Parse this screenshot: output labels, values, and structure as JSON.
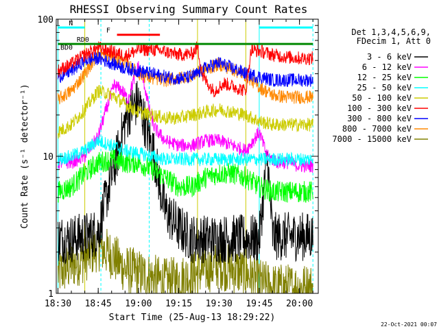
{
  "chart_data": {
    "type": "line",
    "title": "RHESSI Observing Summary Count Rates",
    "xlabel": "Start Time (25-Aug-13 18:29:22)",
    "ylabel": "Count Rate (s⁻¹ detector⁻¹)",
    "yscale": "log",
    "xlim": [
      "18:29:22",
      "20:07:00"
    ],
    "ylim": [
      1,
      100
    ],
    "x_ticks": [
      "18:30",
      "18:45",
      "19:00",
      "19:15",
      "19:30",
      "19:45",
      "20:00"
    ],
    "y_ticks": [
      "1",
      "10",
      "100"
    ],
    "legend_position": "right",
    "legend_header": [
      "Det 1,3,4,5,6,9,",
      "FDecim 1, Att 0"
    ],
    "series": [
      {
        "name": "3 - 6 keV",
        "color": "#000000",
        "points": [
          [
            "18:30",
            2.5
          ],
          [
            "18:35",
            2.5
          ],
          [
            "18:40",
            2.6
          ],
          [
            "18:45",
            2.8
          ],
          [
            "18:48",
            5
          ],
          [
            "18:52",
            10
          ],
          [
            "18:55",
            18
          ],
          [
            "18:57",
            22
          ],
          [
            "19:00",
            25
          ],
          [
            "19:03",
            16
          ],
          [
            "19:06",
            10
          ],
          [
            "19:08",
            6
          ],
          [
            "19:10",
            4
          ],
          [
            "19:15",
            3
          ],
          [
            "19:20",
            2.5
          ],
          [
            "19:22",
            2.5
          ],
          [
            "19:45",
            2.5
          ],
          [
            "19:48",
            10
          ],
          [
            "19:50",
            2.6
          ],
          [
            "19:55",
            2.6
          ],
          [
            "20:00",
            2.6
          ],
          [
            "20:05",
            2.6
          ]
        ]
      },
      {
        "name": "6 - 12 keV",
        "color": "#ff00ff",
        "points": [
          [
            "18:30",
            9
          ],
          [
            "18:35",
            9
          ],
          [
            "18:40",
            10
          ],
          [
            "18:45",
            14
          ],
          [
            "18:48",
            22
          ],
          [
            "18:51",
            33
          ],
          [
            "18:54",
            30
          ],
          [
            "18:56",
            26
          ],
          [
            "18:58",
            35
          ],
          [
            "19:00",
            46
          ],
          [
            "19:02",
            35
          ],
          [
            "19:04",
            22
          ],
          [
            "19:06",
            16
          ],
          [
            "19:10",
            13
          ],
          [
            "19:15",
            12
          ],
          [
            "19:20",
            12
          ],
          [
            "19:25",
            13
          ],
          [
            "19:30",
            13
          ],
          [
            "19:35",
            12
          ],
          [
            "19:40",
            11
          ],
          [
            "19:45",
            15
          ],
          [
            "19:48",
            10
          ],
          [
            "19:52",
            9
          ],
          [
            "19:56",
            9
          ],
          [
            "20:00",
            8.5
          ],
          [
            "20:05",
            8.5
          ]
        ]
      },
      {
        "name": "12 - 25 keV",
        "color": "#00ff00",
        "points": [
          [
            "18:30",
            5.5
          ],
          [
            "18:35",
            6
          ],
          [
            "18:40",
            7.5
          ],
          [
            "18:45",
            9
          ],
          [
            "18:50",
            9.5
          ],
          [
            "18:55",
            9
          ],
          [
            "19:00",
            9
          ],
          [
            "19:05",
            8
          ],
          [
            "19:10",
            7
          ],
          [
            "19:15",
            6
          ],
          [
            "19:20",
            6
          ],
          [
            "19:25",
            7
          ],
          [
            "19:30",
            7.5
          ],
          [
            "19:35",
            7.5
          ],
          [
            "19:40",
            7
          ],
          [
            "19:45",
            6
          ],
          [
            "19:50",
            5.5
          ],
          [
            "19:55",
            5.5
          ],
          [
            "20:00",
            5.5
          ],
          [
            "20:05",
            5.5
          ]
        ]
      },
      {
        "name": "25 - 50 keV",
        "color": "#00ffff",
        "points": [
          [
            "18:30",
            9.5
          ],
          [
            "18:35",
            10
          ],
          [
            "18:40",
            11
          ],
          [
            "18:45",
            13
          ],
          [
            "18:50",
            12
          ],
          [
            "18:55",
            11
          ],
          [
            "19:00",
            10.5
          ],
          [
            "19:05",
            10
          ],
          [
            "19:10",
            9.5
          ],
          [
            "19:15",
            9.5
          ],
          [
            "19:20",
            9.5
          ],
          [
            "19:25",
            9.5
          ],
          [
            "19:30",
            9.5
          ],
          [
            "19:35",
            9.5
          ],
          [
            "19:40",
            9.5
          ],
          [
            "19:45",
            9.5
          ],
          [
            "19:50",
            9.5
          ],
          [
            "19:55",
            9.5
          ],
          [
            "20:00",
            9.5
          ],
          [
            "20:05",
            9.5
          ]
        ]
      },
      {
        "name": "50 - 100 keV",
        "color": "#cccc00",
        "points": [
          [
            "18:30",
            15
          ],
          [
            "18:35",
            17
          ],
          [
            "18:40",
            22
          ],
          [
            "18:45",
            30
          ],
          [
            "18:50",
            28
          ],
          [
            "18:55",
            24
          ],
          [
            "19:00",
            21
          ],
          [
            "19:05",
            20
          ],
          [
            "19:10",
            19
          ],
          [
            "19:15",
            19
          ],
          [
            "19:20",
            20
          ],
          [
            "19:25",
            21
          ],
          [
            "19:30",
            22
          ],
          [
            "19:35",
            21
          ],
          [
            "19:40",
            20
          ],
          [
            "19:45",
            18
          ],
          [
            "19:50",
            17
          ],
          [
            "19:55",
            17
          ],
          [
            "20:00",
            17
          ],
          [
            "20:05",
            17
          ]
        ]
      },
      {
        "name": "100 - 300 keV",
        "color": "#ff0000",
        "points": [
          [
            "18:30",
            42
          ],
          [
            "18:35",
            47
          ],
          [
            "18:40",
            55
          ],
          [
            "18:45",
            62
          ],
          [
            "18:50",
            58
          ],
          [
            "18:55",
            54
          ],
          [
            "19:00",
            60
          ],
          [
            "19:05",
            60
          ],
          [
            "19:10",
            58
          ],
          [
            "19:15",
            55
          ],
          [
            "19:20",
            56
          ],
          [
            "19:22",
            63
          ],
          [
            "19:24",
            38
          ],
          [
            "19:28",
            30
          ],
          [
            "19:32",
            34
          ],
          [
            "19:36",
            32
          ],
          [
            "19:40",
            30
          ],
          [
            "19:42",
            60
          ],
          [
            "19:46",
            58
          ],
          [
            "19:50",
            55
          ],
          [
            "19:55",
            53
          ],
          [
            "20:00",
            52
          ],
          [
            "20:05",
            52
          ]
        ]
      },
      {
        "name": "300 - 800 keV",
        "color": "#0000ff",
        "points": [
          [
            "18:30",
            38
          ],
          [
            "18:35",
            42
          ],
          [
            "18:40",
            50
          ],
          [
            "18:45",
            52
          ],
          [
            "18:50",
            48
          ],
          [
            "18:55",
            44
          ],
          [
            "19:00",
            42
          ],
          [
            "19:05",
            40
          ],
          [
            "19:10",
            38
          ],
          [
            "19:15",
            37
          ],
          [
            "19:20",
            38
          ],
          [
            "19:25",
            44
          ],
          [
            "19:30",
            48
          ],
          [
            "19:35",
            44
          ],
          [
            "19:40",
            40
          ],
          [
            "19:45",
            38
          ],
          [
            "19:50",
            36
          ],
          [
            "19:55",
            36
          ],
          [
            "20:00",
            36
          ],
          [
            "20:05",
            36
          ]
        ]
      },
      {
        "name": "800 - 7000 keV",
        "color": "#ff8800",
        "points": [
          [
            "18:30",
            26
          ],
          [
            "18:35",
            30
          ],
          [
            "18:40",
            40
          ],
          [
            "18:45",
            56
          ],
          [
            "18:50",
            54
          ],
          [
            "18:55",
            48
          ],
          [
            "19:00",
            40
          ],
          [
            "19:05",
            37
          ],
          [
            "19:10",
            36
          ],
          [
            "19:15",
            37
          ],
          [
            "19:20",
            39
          ],
          [
            "19:25",
            43
          ],
          [
            "19:30",
            47
          ],
          [
            "19:35",
            43
          ],
          [
            "19:40",
            39
          ],
          [
            "19:45",
            32
          ],
          [
            "19:50",
            28
          ],
          [
            "19:55",
            27
          ],
          [
            "20:00",
            27
          ],
          [
            "20:05",
            27
          ]
        ]
      },
      {
        "name": "7000 - 15000 keV",
        "color": "#808000",
        "points": [
          [
            "18:30",
            1.4
          ],
          [
            "18:35",
            1.6
          ],
          [
            "18:40",
            1.8
          ],
          [
            "18:45",
            2.2
          ],
          [
            "18:50",
            1.9
          ],
          [
            "18:55",
            1.5
          ],
          [
            "19:00",
            1.4
          ],
          [
            "19:05",
            1.3
          ],
          [
            "19:10",
            1.2
          ],
          [
            "19:15",
            1.25
          ],
          [
            "19:20",
            1.35
          ],
          [
            "19:25",
            1.5
          ],
          [
            "19:30",
            1.6
          ],
          [
            "19:35",
            1.5
          ],
          [
            "19:40",
            1.4
          ],
          [
            "19:45",
            1.2
          ],
          [
            "19:50",
            1.1
          ],
          [
            "19:55",
            1.1
          ],
          [
            "20:00",
            1.1
          ],
          [
            "20:05",
            1.1
          ]
        ]
      }
    ],
    "annotation_bars": [
      {
        "label": "N",
        "color": "#00ffff",
        "y": 87,
        "segments": [
          [
            "18:30",
            "18:40"
          ],
          [
            "19:45",
            "20:05"
          ]
        ]
      },
      {
        "label": "F",
        "color": "#ff0000",
        "y": 77,
        "segments": [
          [
            "18:52",
            "19:08"
          ]
        ]
      },
      {
        "label": "RD0",
        "color": "#008800",
        "y": 66,
        "segments": [
          [
            "18:30",
            "19:20"
          ],
          [
            "19:20",
            "19:40"
          ],
          [
            "19:40",
            "20:05"
          ]
        ]
      },
      {
        "label": "BD0",
        "color": "#008800",
        "y": 62,
        "segments": []
      }
    ],
    "vertical_markers": [
      {
        "color": "#00ffff",
        "dashed": false,
        "x": [
          "18:30",
          "19:45"
        ]
      },
      {
        "color": "#00ffff",
        "dashed": true,
        "x": [
          "18:46",
          "19:04",
          "20:05"
        ]
      },
      {
        "color": "#cccc00",
        "dashed": false,
        "x": [
          "18:40",
          "19:22",
          "19:40"
        ]
      }
    ],
    "footer_timestamp": "22-Oct-2021 00:07"
  }
}
